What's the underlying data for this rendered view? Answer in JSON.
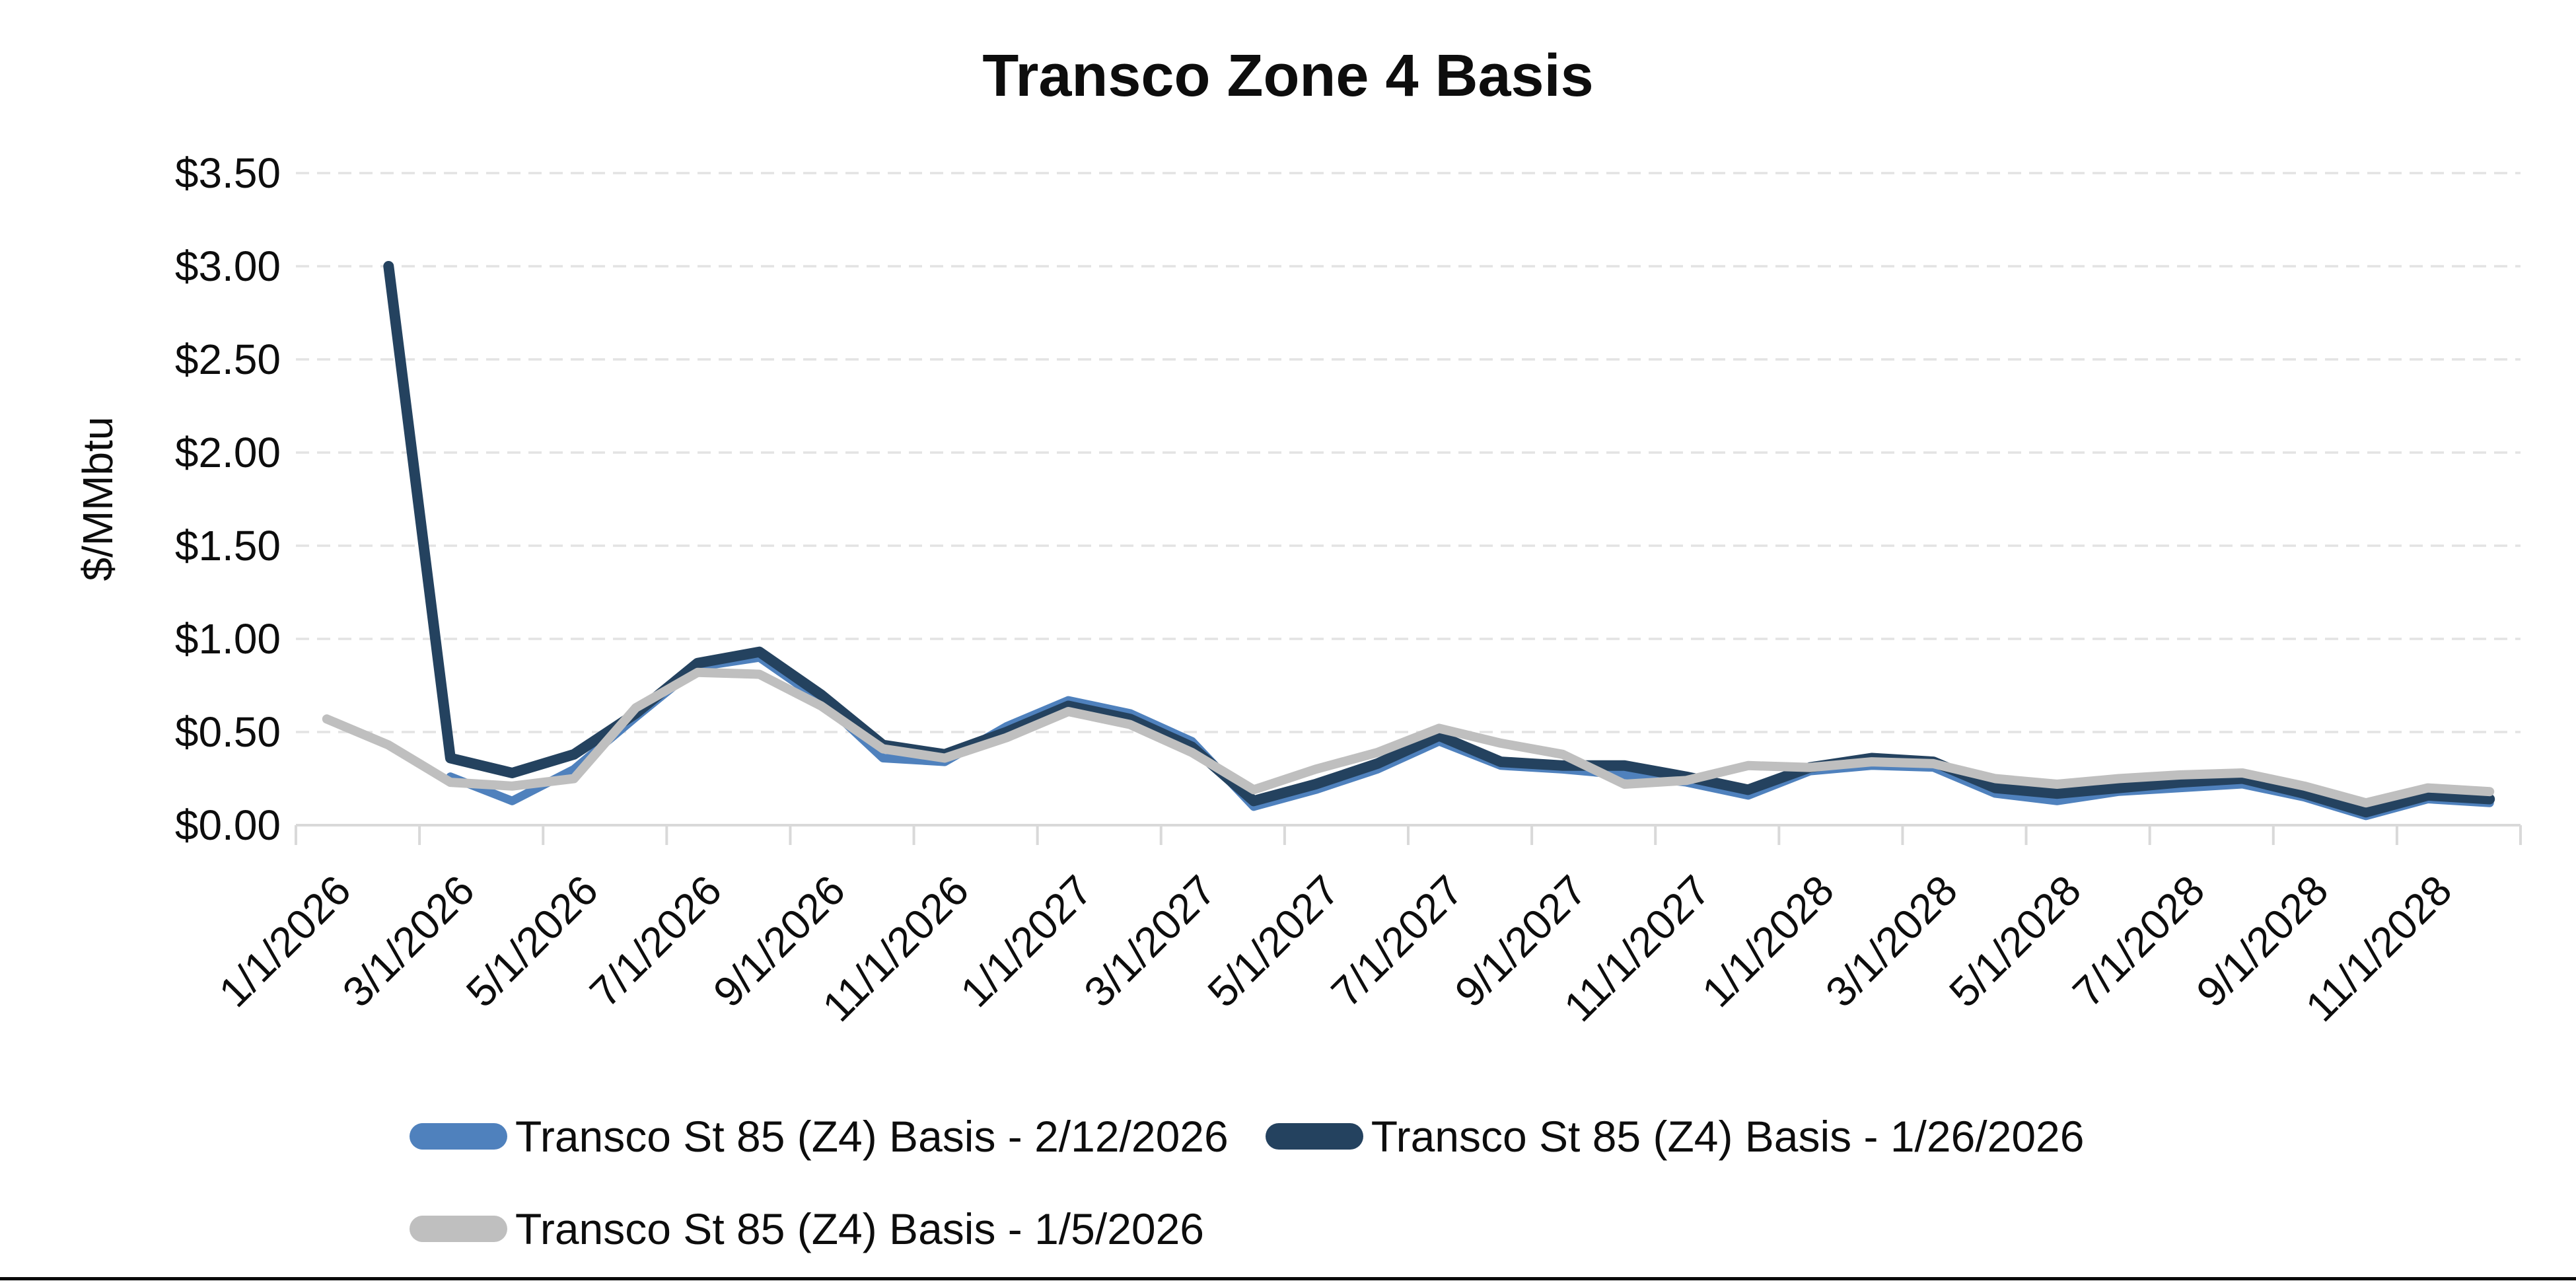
{
  "title": "Transco Zone 4 Basis",
  "y_axis": {
    "title": "$/MMbtu",
    "tick_labels": [
      "$3.50",
      "$3.00",
      "$2.50",
      "$2.00",
      "$1.50",
      "$1.00",
      "$0.50",
      "$0.00"
    ],
    "min": 0,
    "max": 3.5,
    "step": 0.5
  },
  "x_axis": {
    "tick_labels": [
      "1/1/2026",
      "3/1/2026",
      "5/1/2026",
      "7/1/2026",
      "9/1/2026",
      "11/1/2026",
      "1/1/2027",
      "3/1/2027",
      "5/1/2027",
      "7/1/2027",
      "9/1/2027",
      "11/1/2027",
      "1/1/2028",
      "3/1/2028",
      "5/1/2028",
      "7/1/2028",
      "9/1/2028",
      "11/1/2028"
    ]
  },
  "legend": [
    {
      "label": "Transco St 85 (Z4) Basis - 2/12/2026",
      "color": "#4F81BD"
    },
    {
      "label": "Transco St 85 (Z4) Basis - 1/26/2026",
      "color": "#24425F"
    },
    {
      "label": "Transco St 85 (Z4) Basis - 1/5/2026",
      "color": "#BFBFBF"
    }
  ],
  "colors": {
    "gridline": "#E3E3E3",
    "axis": "#D9D9D9",
    "text": "#0d0d0d"
  },
  "chart_data": {
    "type": "line",
    "title": "Transco Zone 4 Basis",
    "ylabel": "$/MMbtu",
    "ylim": [
      0,
      3.5
    ],
    "grid": "horizontal-dashed",
    "legend_position": "bottom",
    "x": [
      "1/1/2026",
      "2/1/2026",
      "3/1/2026",
      "4/1/2026",
      "5/1/2026",
      "6/1/2026",
      "7/1/2026",
      "8/1/2026",
      "9/1/2026",
      "10/1/2026",
      "11/1/2026",
      "12/1/2026",
      "1/1/2027",
      "2/1/2027",
      "3/1/2027",
      "4/1/2027",
      "5/1/2027",
      "6/1/2027",
      "7/1/2027",
      "8/1/2027",
      "9/1/2027",
      "10/1/2027",
      "11/1/2027",
      "12/1/2027",
      "1/1/2028",
      "2/1/2028",
      "3/1/2028",
      "4/1/2028",
      "5/1/2028",
      "6/1/2028",
      "7/1/2028",
      "8/1/2028",
      "9/1/2028",
      "10/1/2028",
      "11/1/2028",
      "12/1/2028"
    ],
    "x_tick_labels": [
      "1/1/2026",
      "3/1/2026",
      "5/1/2026",
      "7/1/2026",
      "9/1/2026",
      "11/1/2026",
      "1/1/2027",
      "3/1/2027",
      "5/1/2027",
      "7/1/2027",
      "9/1/2027",
      "11/1/2027",
      "1/1/2028",
      "3/1/2028",
      "5/1/2028",
      "7/1/2028",
      "9/1/2028",
      "11/1/2028"
    ],
    "series": [
      {
        "name": "Transco St 85 (Z4) Basis - 2/12/2026",
        "color": "#4F81BD",
        "values": [
          null,
          null,
          0.26,
          0.13,
          0.3,
          0.58,
          0.85,
          0.9,
          0.67,
          0.36,
          0.34,
          0.53,
          0.67,
          0.6,
          0.45,
          0.1,
          0.19,
          0.3,
          0.45,
          0.32,
          0.3,
          0.27,
          0.23,
          0.16,
          0.29,
          0.32,
          0.31,
          0.17,
          0.13,
          0.18,
          0.2,
          0.22,
          0.15,
          0.05,
          0.14,
          0.12
        ]
      },
      {
        "name": "Transco St 85 (Z4) Basis - 1/26/2026",
        "color": "#24425F",
        "values": [
          null,
          3.0,
          0.36,
          0.28,
          0.38,
          0.6,
          0.87,
          0.93,
          0.7,
          0.43,
          0.38,
          0.5,
          0.64,
          0.57,
          0.42,
          0.13,
          0.22,
          0.33,
          0.48,
          0.34,
          0.32,
          0.32,
          0.26,
          0.19,
          0.31,
          0.36,
          0.34,
          0.2,
          0.17,
          0.2,
          0.23,
          0.25,
          0.17,
          0.07,
          0.16,
          0.14
        ]
      },
      {
        "name": "Transco St 85 (Z4) Basis - 1/5/2026",
        "color": "#BFBFBF",
        "values": [
          0.57,
          0.43,
          0.23,
          0.21,
          0.25,
          0.63,
          0.82,
          0.81,
          0.64,
          0.41,
          0.36,
          0.47,
          0.61,
          0.54,
          0.39,
          0.19,
          0.3,
          0.39,
          0.52,
          0.44,
          0.38,
          0.22,
          0.24,
          0.32,
          0.31,
          0.34,
          0.33,
          0.25,
          0.22,
          0.25,
          0.27,
          0.28,
          0.21,
          0.12,
          0.2,
          0.18
        ]
      }
    ]
  }
}
